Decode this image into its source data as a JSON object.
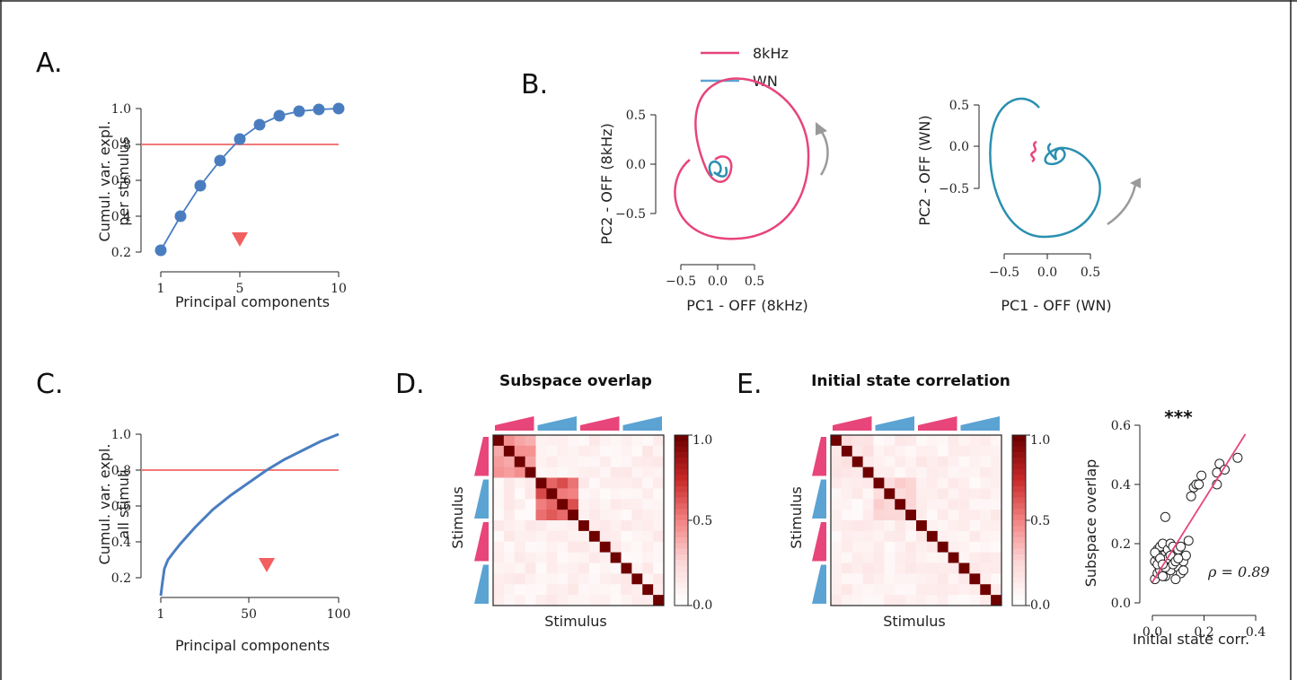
{
  "colors": {
    "pink": "#e8457a",
    "blue": "#5ba3d3",
    "teal": "#2a8fb0",
    "red_line": "#f27a7a",
    "dot": "#4a7dc0",
    "marker": "#f25f5f",
    "gray_arrow": "#9a9a9a"
  },
  "chart_data": [
    {
      "id": "A",
      "type": "line",
      "panel": "A.",
      "xlabel": "Principal components",
      "ylabel_lines": [
        "Cumul. var. expl.",
        "per stimulus"
      ],
      "x": [
        1,
        2,
        3,
        4,
        5,
        6,
        7,
        8,
        9,
        10
      ],
      "values": [
        0.21,
        0.4,
        0.57,
        0.71,
        0.83,
        0.91,
        0.96,
        0.985,
        0.995,
        1.0
      ],
      "xlim": [
        1,
        10
      ],
      "ylim": [
        0.2,
        1.0
      ],
      "xticks": [
        "1",
        "5",
        "10"
      ],
      "yticks": [
        "0.2",
        "0.4",
        "0.6",
        "0.8",
        "1.0"
      ],
      "threshold": 0.8,
      "marker_x": 5
    },
    {
      "id": "B1",
      "type": "line",
      "panel": "B.",
      "xlabel": "PC1 - OFF (8kHz)",
      "ylabel": "PC2 - OFF (8kHz)",
      "xticks": [
        "−0.5",
        "0.0",
        "0.5"
      ],
      "yticks": [
        "−0.5",
        "0.0",
        "0.5"
      ],
      "legend": [
        "8kHz",
        "WN"
      ]
    },
    {
      "id": "B2",
      "type": "line",
      "xlabel": "PC1 - OFF (WN)",
      "ylabel": "PC2 - OFF (WN)",
      "xticks": [
        "−0.5",
        "0.0",
        "0.5"
      ],
      "yticks": [
        "−0.5",
        "0.0",
        "0.5"
      ]
    },
    {
      "id": "C",
      "type": "line",
      "panel": "C.",
      "xlabel": "Principal components",
      "ylabel_lines": [
        "Cumul. var. expl.",
        "all stimuli"
      ],
      "xlim": [
        1,
        100
      ],
      "ylim": [
        0.2,
        1.0
      ],
      "xticks": [
        "1",
        "50",
        "100"
      ],
      "yticks": [
        "0.2",
        "0.4",
        "0.6",
        "0.8",
        "1.0"
      ],
      "curve_x": [
        1,
        2,
        3,
        5,
        8,
        12,
        20,
        30,
        40,
        50,
        60,
        70,
        80,
        90,
        100
      ],
      "curve_y": [
        0.1,
        0.18,
        0.25,
        0.3,
        0.34,
        0.39,
        0.48,
        0.58,
        0.66,
        0.73,
        0.8,
        0.86,
        0.91,
        0.96,
        1.0
      ],
      "threshold": 0.8,
      "marker_x": 60
    },
    {
      "id": "D",
      "type": "heatmap",
      "panel": "D.",
      "title": "Subspace overlap",
      "xlabel": "Stimulus",
      "ylabel": "Stimulus",
      "colorbar_ticks": [
        "1.0",
        "0.5",
        "0.0"
      ]
    },
    {
      "id": "E",
      "type": "heatmap",
      "panel": "E.",
      "title": "Initial state correlation",
      "xlabel": "Stimulus",
      "ylabel": "Stimulus",
      "colorbar_ticks": [
        "1.0",
        "0.5",
        "0.0"
      ]
    },
    {
      "id": "F",
      "type": "scatter",
      "xlabel": "Initial state corr.",
      "ylabel": "Subspace overlap",
      "xlim": [
        0,
        0.4
      ],
      "ylim": [
        0,
        0.6
      ],
      "xticks": [
        "0.0",
        "0.2",
        "0.4"
      ],
      "yticks": [
        "0.0",
        "0.2",
        "0.4",
        "0.6"
      ],
      "annotation": "ρ = 0.89",
      "significance": "***",
      "fit": [
        [
          0.0,
          0.07
        ],
        [
          0.36,
          0.57
        ]
      ],
      "points": [
        [
          0.01,
          0.08
        ],
        [
          0.02,
          0.1
        ],
        [
          0.03,
          0.12
        ],
        [
          0.01,
          0.14
        ],
        [
          0.04,
          0.16
        ],
        [
          0.02,
          0.18
        ],
        [
          0.05,
          0.09
        ],
        [
          0.06,
          0.13
        ],
        [
          0.03,
          0.19
        ],
        [
          0.07,
          0.11
        ],
        [
          0.08,
          0.15
        ],
        [
          0.04,
          0.2
        ],
        [
          0.09,
          0.17
        ],
        [
          0.1,
          0.12
        ],
        [
          0.05,
          0.14
        ],
        [
          0.02,
          0.16
        ],
        [
          0.06,
          0.18
        ],
        [
          0.11,
          0.1
        ],
        [
          0.12,
          0.14
        ],
        [
          0.07,
          0.2
        ],
        [
          0.13,
          0.16
        ],
        [
          0.03,
          0.11
        ],
        [
          0.08,
          0.19
        ],
        [
          0.09,
          0.08
        ],
        [
          0.14,
          0.21
        ],
        [
          0.1,
          0.18
        ],
        [
          0.05,
          0.12
        ],
        [
          0.01,
          0.17
        ],
        [
          0.04,
          0.09
        ],
        [
          0.06,
          0.15
        ],
        [
          0.02,
          0.13
        ],
        [
          0.03,
          0.15
        ],
        [
          0.07,
          0.16
        ],
        [
          0.11,
          0.19
        ],
        [
          0.12,
          0.11
        ],
        [
          0.05,
          0.29
        ],
        [
          0.15,
          0.36
        ],
        [
          0.16,
          0.39
        ],
        [
          0.17,
          0.4
        ],
        [
          0.18,
          0.4
        ],
        [
          0.19,
          0.43
        ],
        [
          0.25,
          0.44
        ],
        [
          0.25,
          0.4
        ],
        [
          0.26,
          0.47
        ],
        [
          0.28,
          0.45
        ],
        [
          0.33,
          0.49
        ],
        [
          0.08,
          0.13
        ],
        [
          0.09,
          0.14
        ],
        [
          0.1,
          0.15
        ],
        [
          0.04,
          0.13
        ]
      ]
    }
  ]
}
